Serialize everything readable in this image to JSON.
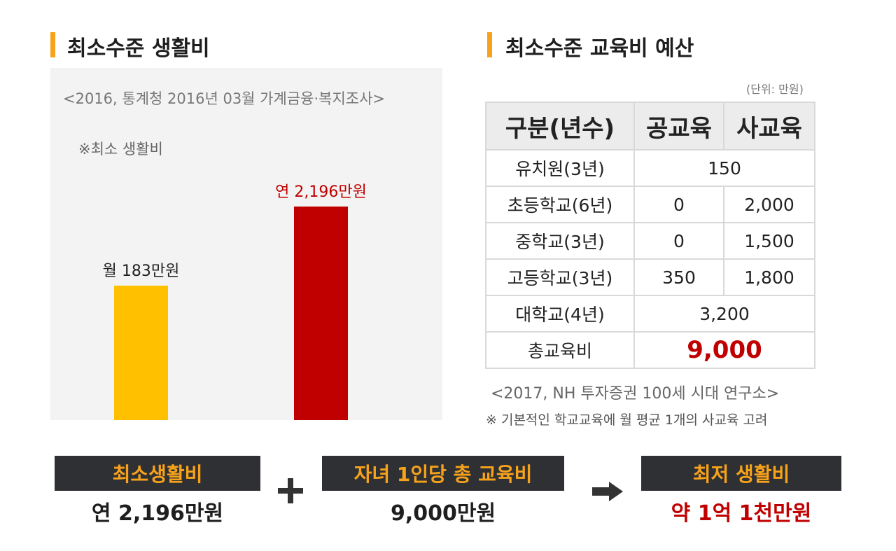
{
  "left": {
    "title": "최소수준 생활비",
    "source": "<2016, 통계청 2016년 03월 가계금융·복지조사>",
    "note": "※최소 생활비"
  },
  "right": {
    "title": "최소수준 교육비 예산",
    "unit": "(단위: 만원)",
    "table": {
      "headers": [
        "구분(년수)",
        "공교육",
        "사교육"
      ],
      "rows": [
        {
          "label": "유치원(3년)",
          "merged": "150"
        },
        {
          "label": "초등학교(6년)",
          "public": "0",
          "private": "2,000"
        },
        {
          "label": "중학교(3년)",
          "public": "0",
          "private": "1,500"
        },
        {
          "label": "고등학교(3년)",
          "public": "350",
          "private": "1,800"
        },
        {
          "label": "대학교(4년)",
          "merged": "3,200"
        },
        {
          "label": "총교육비",
          "merged": "9,000"
        }
      ]
    },
    "source": "<2017, NH 투자증권 100세 시대 연구소>",
    "note": "※ 기본적인 학교교육에 월 평균 1개의 사교육 고려"
  },
  "formula": {
    "box1": "최소생활비",
    "val1": "연 2,196만원",
    "box2": "자녀 1인당 총 교육비",
    "val2": "9,000만원",
    "box3": "최저 생활비",
    "val3": "약 1억 1천만원"
  },
  "chart_data": {
    "type": "bar",
    "title": "",
    "xlabel": "",
    "ylabel": "",
    "unit": "만원",
    "data_labels": [
      "월 183만원",
      "연 2,196만원"
    ],
    "values": [
      183,
      2196
    ],
    "colors": [
      "#ffc000",
      "#c00000"
    ],
    "label_colors": [
      "#222222",
      "#c00000"
    ],
    "ylim": [
      0,
      2196
    ],
    "grid": false,
    "note": "Bars are not drawn on a linear common scale in the original; monthly bar shown visually shorter than annual bar."
  },
  "colors": {
    "accent": "#f7a21b",
    "red": "#c00000",
    "yellow": "#ffc000",
    "box": "#2f3033"
  }
}
